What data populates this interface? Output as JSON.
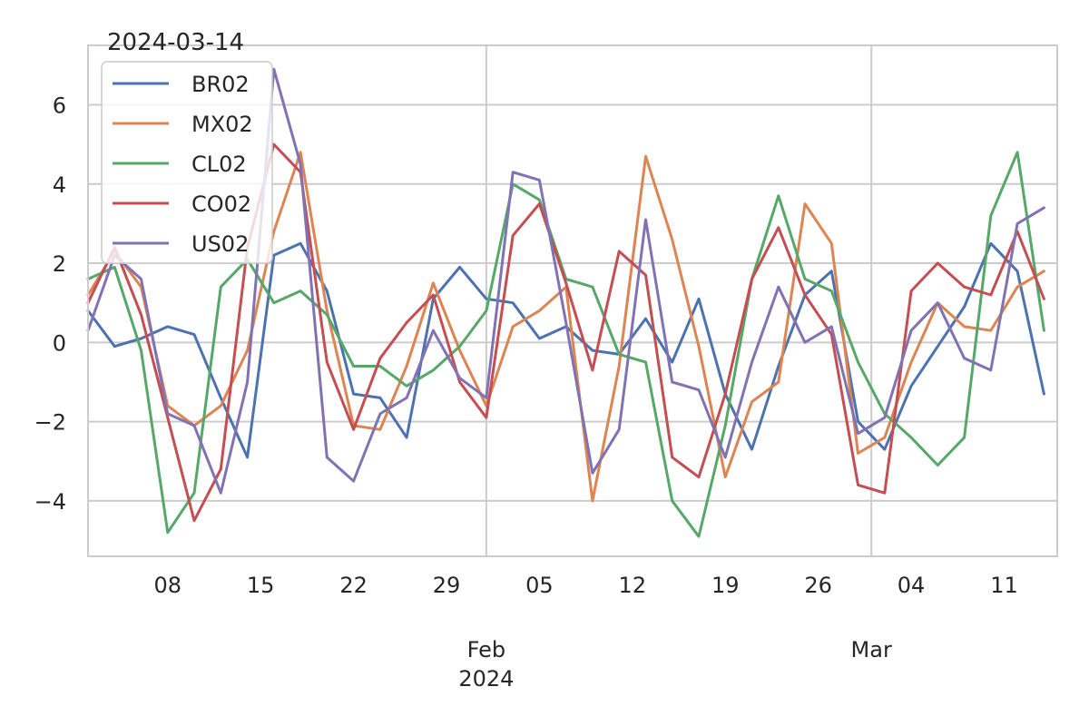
{
  "chart_data": {
    "type": "line",
    "title": "2024-03-14",
    "xlabel": "",
    "ylabel": "",
    "x_start": "2024-01-02",
    "x_end": "2024-03-15",
    "ylim": [
      -5.4,
      7.5
    ],
    "grid": true,
    "legend": {
      "position": "top-left"
    },
    "y_ticks": [
      {
        "value": 6,
        "label": "6"
      },
      {
        "value": 4,
        "label": "4"
      },
      {
        "value": 2,
        "label": "2"
      },
      {
        "value": 0,
        "label": "0"
      },
      {
        "value": -2,
        "label": "−2"
      },
      {
        "value": -4,
        "label": "−4"
      }
    ],
    "x_minor_ticks": [
      {
        "date": "2024-01-08",
        "label": "08"
      },
      {
        "date": "2024-01-15",
        "label": "15"
      },
      {
        "date": "2024-01-22",
        "label": "22"
      },
      {
        "date": "2024-01-29",
        "label": "29"
      },
      {
        "date": "2024-02-05",
        "label": "05"
      },
      {
        "date": "2024-02-12",
        "label": "12"
      },
      {
        "date": "2024-02-19",
        "label": "19"
      },
      {
        "date": "2024-02-26",
        "label": "26"
      },
      {
        "date": "2024-03-04",
        "label": "04"
      },
      {
        "date": "2024-03-11",
        "label": "11"
      }
    ],
    "x_major_ticks": [
      {
        "date": "2024-02-01",
        "label": "Feb",
        "sublabel": "2024"
      },
      {
        "date": "2024-03-01",
        "label": "Mar",
        "sublabel": ""
      }
    ],
    "dates": [
      "2024-01-02",
      "2024-01-04",
      "2024-01-06",
      "2024-01-08",
      "2024-01-10",
      "2024-01-12",
      "2024-01-14",
      "2024-01-16",
      "2024-01-18",
      "2024-01-20",
      "2024-01-22",
      "2024-01-24",
      "2024-01-26",
      "2024-01-28",
      "2024-01-30",
      "2024-02-01",
      "2024-02-03",
      "2024-02-05",
      "2024-02-07",
      "2024-02-09",
      "2024-02-11",
      "2024-02-13",
      "2024-02-15",
      "2024-02-17",
      "2024-02-19",
      "2024-02-21",
      "2024-02-23",
      "2024-02-25",
      "2024-02-27",
      "2024-02-29",
      "2024-03-02",
      "2024-03-04",
      "2024-03-06",
      "2024-03-08",
      "2024-03-10",
      "2024-03-12",
      "2024-03-14"
    ],
    "series": [
      {
        "name": "BR02",
        "color": "#4c72b0",
        "values": [
          0.8,
          -0.1,
          0.1,
          0.4,
          0.2,
          -1.4,
          -2.9,
          2.2,
          2.5,
          1.3,
          -1.3,
          -1.4,
          -2.4,
          1.1,
          1.9,
          1.1,
          1.0,
          0.1,
          0.4,
          -0.2,
          -0.3,
          0.6,
          -0.5,
          1.1,
          -1.3,
          -2.7,
          -0.6,
          1.2,
          1.8,
          -2.0,
          -2.7,
          -1.1,
          -0.1,
          0.9,
          2.5,
          1.8,
          -1.3
        ]
      },
      {
        "name": "MX02",
        "color": "#dd8452",
        "values": [
          1.2,
          2.3,
          1.4,
          -1.6,
          -2.1,
          -1.6,
          -0.2,
          2.8,
          4.8,
          0.8,
          -2.1,
          -2.2,
          -0.6,
          1.5,
          -0.2,
          -1.6,
          0.4,
          0.8,
          1.4,
          -4.0,
          -0.6,
          4.7,
          2.6,
          -0.1,
          -3.4,
          -1.5,
          -1.0,
          3.5,
          2.5,
          -2.8,
          -2.4,
          -0.5,
          1.0,
          0.4,
          0.3,
          1.4,
          1.8
        ]
      },
      {
        "name": "CL02",
        "color": "#55a868",
        "values": [
          1.6,
          1.9,
          -0.2,
          -4.8,
          -3.8,
          1.4,
          2.1,
          1.0,
          1.3,
          0.7,
          -0.6,
          -0.6,
          -1.1,
          -0.7,
          -0.1,
          0.8,
          4.0,
          3.6,
          1.6,
          1.4,
          -0.3,
          -0.5,
          -4.0,
          -4.9,
          -2.1,
          1.6,
          3.7,
          1.6,
          1.3,
          -0.5,
          -1.8,
          -2.4,
          -3.1,
          -2.4,
          3.2,
          4.8,
          0.3
        ]
      },
      {
        "name": "CO02",
        "color": "#c44e52",
        "values": [
          1.0,
          2.4,
          0.7,
          -1.9,
          -4.5,
          -3.2,
          2.4,
          5.0,
          4.3,
          -0.5,
          -2.2,
          -0.4,
          0.5,
          1.2,
          -1.0,
          -1.9,
          2.7,
          3.5,
          1.5,
          -0.7,
          2.3,
          1.7,
          -2.9,
          -3.4,
          -1.3,
          1.6,
          2.9,
          1.2,
          0.2,
          -3.6,
          -3.8,
          1.3,
          2.0,
          1.4,
          1.2,
          2.8,
          1.1
        ]
      },
      {
        "name": "US02",
        "color": "#8172b3",
        "values": [
          0.3,
          2.2,
          1.6,
          -1.8,
          -2.1,
          -3.8,
          -1.0,
          6.9,
          4.5,
          -2.9,
          -3.5,
          -1.8,
          -1.4,
          0.3,
          -0.9,
          -1.4,
          4.3,
          4.1,
          0.5,
          -3.3,
          -2.2,
          3.1,
          -1.0,
          -1.2,
          -2.9,
          -0.5,
          1.4,
          0.0,
          0.4,
          -2.3,
          -1.9,
          0.3,
          1.0,
          -0.4,
          -0.7,
          3.0,
          3.4
        ]
      }
    ]
  }
}
